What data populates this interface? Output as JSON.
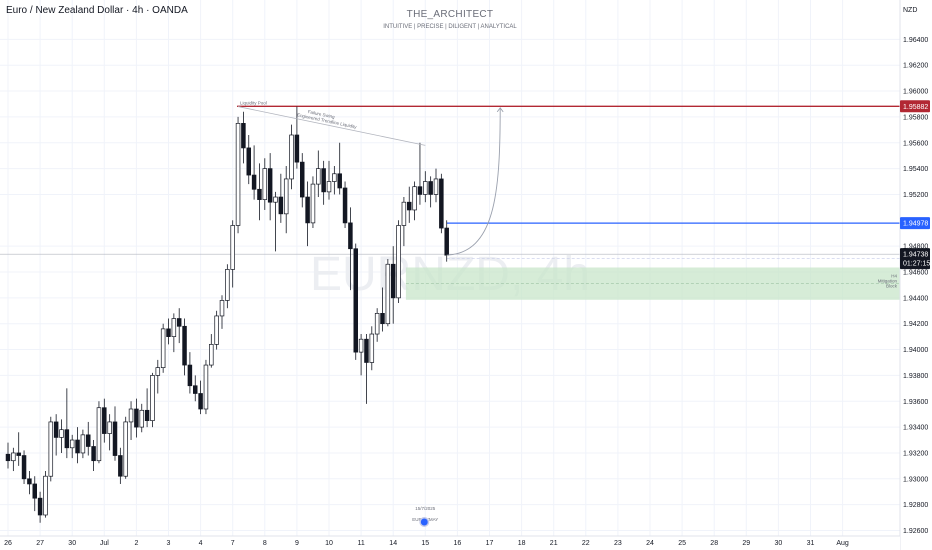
{
  "header": {
    "symbol_title": "Euro / New Zealand Dollar · 4h · OANDA",
    "brand": "THE_ARCHITECT",
    "tagline": "INTUITIVE | PRECISE | DILIGENT | ANALYTICAL",
    "currency": "NZD"
  },
  "watermark": "EURNZD, 4h",
  "chart_data": {
    "type": "candlestick",
    "ylim": [
      1.9255,
      1.9705
    ],
    "y_ticks": [
      "1.96400",
      "1.96200",
      "1.96000",
      "1.95800",
      "1.95600",
      "1.95400",
      "1.95200",
      "1.94800",
      "1.94600",
      "1.94400",
      "1.94200",
      "1.94000",
      "1.93800",
      "1.93600",
      "1.93400",
      "1.93200",
      "1.93000",
      "1.92800",
      "1.92600"
    ],
    "x_ticks": [
      "26",
      "27",
      "30",
      "Jul",
      "2",
      "3",
      "4",
      "7",
      "8",
      "9",
      "10",
      "11",
      "14",
      "15",
      "16",
      "17",
      "18",
      "21",
      "22",
      "23",
      "24",
      "25",
      "28",
      "29",
      "30",
      "31",
      "Aug"
    ],
    "x_tick_index": [
      0,
      6,
      12,
      18,
      24,
      30,
      36,
      42,
      48,
      54,
      60,
      66,
      72,
      78,
      84,
      90,
      96,
      102,
      108,
      114,
      120,
      126,
      132,
      138,
      144,
      150,
      156
    ],
    "candles": [
      [
        1.9319,
        1.9328,
        1.9308,
        1.9314
      ],
      [
        1.9314,
        1.9324,
        1.9306,
        1.932
      ],
      [
        1.932,
        1.9336,
        1.931,
        1.9318
      ],
      [
        1.9318,
        1.9322,
        1.9296,
        1.93
      ],
      [
        1.93,
        1.9306,
        1.9288,
        1.9296
      ],
      [
        1.9296,
        1.9302,
        1.9275,
        1.9285
      ],
      [
        1.9285,
        1.929,
        1.9266,
        1.9272
      ],
      [
        1.9272,
        1.9306,
        1.927,
        1.9302
      ],
      [
        1.9302,
        1.9348,
        1.9298,
        1.9344
      ],
      [
        1.9344,
        1.935,
        1.9318,
        1.9332
      ],
      [
        1.9332,
        1.9346,
        1.932,
        1.9338
      ],
      [
        1.9338,
        1.937,
        1.9316,
        1.9324
      ],
      [
        1.9324,
        1.9334,
        1.9316,
        1.933
      ],
      [
        1.933,
        1.934,
        1.9312,
        1.932
      ],
      [
        1.932,
        1.9338,
        1.9316,
        1.9334
      ],
      [
        1.9334,
        1.9344,
        1.9318,
        1.9325
      ],
      [
        1.9325,
        1.933,
        1.9306,
        1.9314
      ],
      [
        1.9314,
        1.936,
        1.9312,
        1.9355
      ],
      [
        1.9355,
        1.9362,
        1.9328,
        1.9335
      ],
      [
        1.9335,
        1.935,
        1.9322,
        1.9344
      ],
      [
        1.9344,
        1.9356,
        1.9314,
        1.9318
      ],
      [
        1.9318,
        1.9324,
        1.9296,
        1.9302
      ],
      [
        1.9302,
        1.9348,
        1.93,
        1.9344
      ],
      [
        1.9344,
        1.936,
        1.933,
        1.9354
      ],
      [
        1.9354,
        1.9362,
        1.9332,
        1.934
      ],
      [
        1.934,
        1.9358,
        1.9336,
        1.9353
      ],
      [
        1.9353,
        1.937,
        1.934,
        1.9345
      ],
      [
        1.9345,
        1.9382,
        1.934,
        1.938
      ],
      [
        1.938,
        1.9392,
        1.9366,
        1.9386
      ],
      [
        1.9386,
        1.942,
        1.9382,
        1.9416
      ],
      [
        1.9416,
        1.9424,
        1.9404,
        1.941
      ],
      [
        1.941,
        1.9428,
        1.9398,
        1.9424
      ],
      [
        1.9424,
        1.9432,
        1.9405,
        1.9418
      ],
      [
        1.9418,
        1.9424,
        1.938,
        1.9388
      ],
      [
        1.9388,
        1.9398,
        1.9366,
        1.9372
      ],
      [
        1.9372,
        1.938,
        1.936,
        1.9366
      ],
      [
        1.9366,
        1.9376,
        1.935,
        1.9354
      ],
      [
        1.9354,
        1.9392,
        1.935,
        1.9388
      ],
      [
        1.9388,
        1.9412,
        1.9386,
        1.9404
      ],
      [
        1.9404,
        1.943,
        1.94,
        1.9426
      ],
      [
        1.9426,
        1.9442,
        1.9416,
        1.9438
      ],
      [
        1.9438,
        1.9466,
        1.9432,
        1.9462
      ],
      [
        1.9462,
        1.95,
        1.9448,
        1.9496
      ],
      [
        1.9496,
        1.958,
        1.949,
        1.9575
      ],
      [
        1.9575,
        1.9584,
        1.9544,
        1.9556
      ],
      [
        1.9556,
        1.9566,
        1.9528,
        1.9535
      ],
      [
        1.9535,
        1.9558,
        1.9516,
        1.9524
      ],
      [
        1.9524,
        1.9544,
        1.95,
        1.9516
      ],
      [
        1.9516,
        1.9548,
        1.9508,
        1.954
      ],
      [
        1.954,
        1.9552,
        1.95,
        1.9514
      ],
      [
        1.9514,
        1.9522,
        1.9476,
        1.9518
      ],
      [
        1.9518,
        1.9536,
        1.9498,
        1.9505
      ],
      [
        1.9505,
        1.9542,
        1.949,
        1.9532
      ],
      [
        1.9532,
        1.9574,
        1.9524,
        1.9566
      ],
      [
        1.9566,
        1.9588,
        1.954,
        1.9545
      ],
      [
        1.9545,
        1.9552,
        1.951,
        1.9518
      ],
      [
        1.9518,
        1.953,
        1.948,
        1.9498
      ],
      [
        1.9498,
        1.9534,
        1.9494,
        1.9528
      ],
      [
        1.9528,
        1.9554,
        1.9518,
        1.954
      ],
      [
        1.954,
        1.9546,
        1.9512,
        1.9522
      ],
      [
        1.9522,
        1.9546,
        1.9516,
        1.953
      ],
      [
        1.953,
        1.9542,
        1.952,
        1.9536
      ],
      [
        1.9536,
        1.956,
        1.952,
        1.9525
      ],
      [
        1.9525,
        1.953,
        1.9494,
        1.9498
      ],
      [
        1.9498,
        1.951,
        1.9446,
        1.9478
      ],
      [
        1.9478,
        1.9482,
        1.9392,
        1.9398
      ],
      [
        1.9398,
        1.9412,
        1.938,
        1.9408
      ],
      [
        1.9408,
        1.9412,
        1.9358,
        1.939
      ],
      [
        1.939,
        1.9418,
        1.9384,
        1.9412
      ],
      [
        1.9412,
        1.9432,
        1.9406,
        1.9428
      ],
      [
        1.9428,
        1.9448,
        1.9414,
        1.942
      ],
      [
        1.942,
        1.947,
        1.9418,
        1.9466
      ],
      [
        1.9466,
        1.948,
        1.942,
        1.944
      ],
      [
        1.944,
        1.95,
        1.9436,
        1.9496
      ],
      [
        1.9496,
        1.9518,
        1.948,
        1.9514
      ],
      [
        1.9514,
        1.9526,
        1.9498,
        1.9508
      ],
      [
        1.9508,
        1.953,
        1.95,
        1.9526
      ],
      [
        1.9526,
        1.956,
        1.9512,
        1.952
      ],
      [
        1.952,
        1.9538,
        1.9514,
        1.953
      ],
      [
        1.953,
        1.9534,
        1.951,
        1.952
      ],
      [
        1.952,
        1.954,
        1.9514,
        1.9532
      ],
      [
        1.9532,
        1.9536,
        1.949,
        1.9494
      ],
      [
        1.9494,
        1.95,
        1.9468,
        1.9473
      ]
    ],
    "price_levels": [
      {
        "label": "1.95882",
        "value": 1.95882,
        "color": "#b22833",
        "name": "liquidity-line"
      },
      {
        "label": "1.94978",
        "value": 1.94978,
        "color": "#2962ff",
        "name": "support-line"
      },
      {
        "label": "1.94738",
        "value": 1.94738,
        "color": "#131722",
        "name": "last-price"
      }
    ],
    "countdown": "01:27:15",
    "zone": {
      "from": 1.94385,
      "to": 1.94635,
      "label": [
        "H4",
        "Mitigation",
        "Block"
      ]
    },
    "annotations": {
      "liquidity_pool": "Liquidity Pool",
      "trendline_note_1": "Failure Swing",
      "trendline_note_2": "Engineered Trendline Liquidity"
    },
    "event": {
      "date": "15/7/2025",
      "text": "EUR ... 'MAY"
    },
    "colors": {
      "bull": "#ffffff",
      "bear": "#131722",
      "zone": "#c8e6c9",
      "projection": "#9aa0ad"
    }
  }
}
